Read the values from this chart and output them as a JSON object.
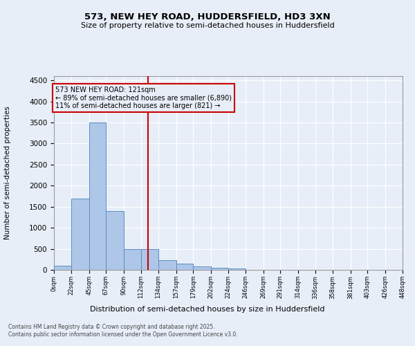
{
  "title_line1": "573, NEW HEY ROAD, HUDDERSFIELD, HD3 3XN",
  "title_line2": "Size of property relative to semi-detached houses in Huddersfield",
  "xlabel": "Distribution of semi-detached houses by size in Huddersfield",
  "ylabel": "Number of semi-detached properties",
  "footnote": "Contains HM Land Registry data © Crown copyright and database right 2025.\nContains public sector information licensed under the Open Government Licence v3.0.",
  "bar_color": "#aec6e8",
  "bar_edge_color": "#5a8fc0",
  "bg_color": "#e8eef8",
  "grid_color": "#ffffff",
  "vline_x": 121,
  "vline_color": "#cc0000",
  "annotation_box_color": "#cc0000",
  "annotation_text_line1": "573 NEW HEY ROAD: 121sqm",
  "annotation_text_line2": "← 89% of semi-detached houses are smaller (6,890)",
  "annotation_text_line3": "11% of semi-detached houses are larger (821) →",
  "bin_edges": [
    0,
    22,
    45,
    67,
    90,
    112,
    134,
    157,
    179,
    202,
    224,
    246,
    269,
    291,
    314,
    336,
    358,
    381,
    403,
    426,
    448
  ],
  "bin_labels": [
    "0sqm",
    "22sqm",
    "45sqm",
    "67sqm",
    "90sqm",
    "112sqm",
    "134sqm",
    "157sqm",
    "179sqm",
    "202sqm",
    "224sqm",
    "246sqm",
    "269sqm",
    "291sqm",
    "314sqm",
    "336sqm",
    "358sqm",
    "381sqm",
    "403sqm",
    "426sqm",
    "448sqm"
  ],
  "bar_heights": [
    100,
    1700,
    3500,
    1400,
    500,
    500,
    230,
    140,
    80,
    55,
    30,
    0,
    0,
    0,
    0,
    0,
    0,
    0,
    0,
    0
  ],
  "ylim": [
    0,
    4600
  ],
  "yticks": [
    0,
    500,
    1000,
    1500,
    2000,
    2500,
    3000,
    3500,
    4000,
    4500
  ]
}
